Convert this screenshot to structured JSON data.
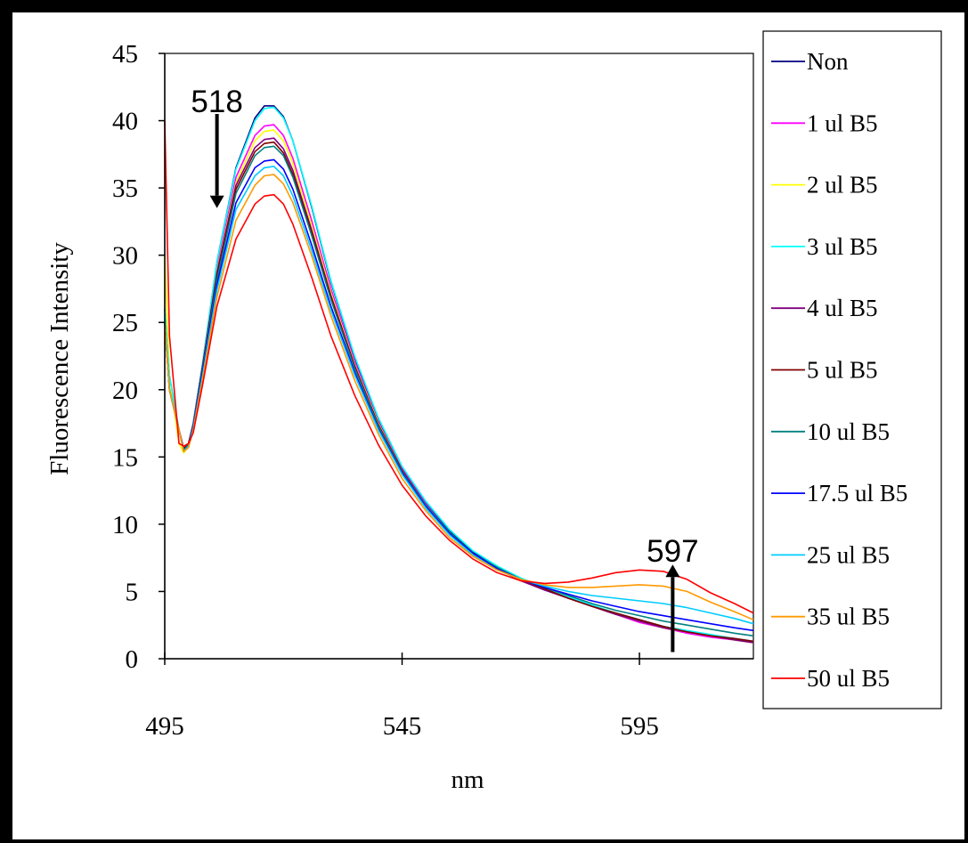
{
  "chart_data": {
    "type": "line",
    "title": "",
    "xlabel": "nm",
    "ylabel": "Fluorescence Intensity",
    "xlim": [
      495,
      619
    ],
    "ylim": [
      0,
      45
    ],
    "xticks": [
      495,
      545,
      595
    ],
    "yticks": [
      0,
      5,
      10,
      15,
      20,
      25,
      30,
      35,
      40,
      45
    ],
    "grid": false,
    "legend_position": "right",
    "annotations": [
      {
        "label": "518",
        "x": 506,
        "y_from": 40.5,
        "y_to": 33.5,
        "arrow": "down"
      },
      {
        "label": "597",
        "x": 602,
        "y_from": 0.5,
        "y_to": 7,
        "arrow": "up"
      }
    ],
    "x": [
      495,
      496,
      498,
      499,
      500,
      501,
      503,
      506,
      510,
      514,
      516,
      518,
      520,
      522,
      526,
      530,
      535,
      540,
      545,
      550,
      555,
      560,
      565,
      570,
      575,
      580,
      585,
      590,
      595,
      600,
      605,
      610,
      615,
      619
    ],
    "series": [
      {
        "name": "Non",
        "color": "#000080",
        "values": [
          26,
          21,
          17,
          15.6,
          16,
          17.5,
          22,
          29.5,
          36.5,
          40.2,
          41.1,
          41.1,
          40.3,
          38.5,
          33.5,
          28,
          22.4,
          17.8,
          14.2,
          11.6,
          9.5,
          7.9,
          6.8,
          5.9,
          5.2,
          4.5,
          3.9,
          3.3,
          2.8,
          2.4,
          2.0,
          1.7,
          1.5,
          1.3
        ]
      },
      {
        "name": "1 ul B5",
        "color": "#FF00FF",
        "values": [
          25,
          20,
          17,
          15.6,
          16,
          17.5,
          22,
          29,
          35.8,
          38.9,
          39.6,
          39.7,
          38.9,
          37.2,
          32.5,
          27.5,
          22.1,
          17.6,
          14.1,
          11.5,
          9.4,
          7.8,
          6.7,
          5.9,
          5.2,
          4.5,
          3.9,
          3.3,
          2.7,
          2.3,
          1.9,
          1.6,
          1.4,
          1.2
        ]
      },
      {
        "name": "2 ul B5",
        "color": "#FFFF00",
        "values": [
          30,
          21,
          16,
          15.3,
          15.8,
          17.3,
          22,
          28.8,
          35.4,
          38.5,
          39.2,
          39.3,
          38.5,
          36.8,
          32.1,
          27.2,
          21.9,
          17.5,
          14,
          11.4,
          9.4,
          7.8,
          6.7,
          5.9,
          5.2,
          4.5,
          3.9,
          3.3,
          2.8,
          2.3,
          2.0,
          1.7,
          1.4,
          1.2
        ]
      },
      {
        "name": "3 ul B5",
        "color": "#00FFFF",
        "values": [
          26,
          21,
          17,
          15.5,
          16,
          17.5,
          22,
          29.5,
          36.4,
          40.0,
          40.9,
          41.0,
          40.2,
          38.5,
          33.6,
          28.1,
          22.5,
          17.9,
          14.3,
          11.7,
          9.6,
          8.0,
          6.9,
          6.0,
          5.3,
          4.6,
          4.0,
          3.4,
          2.9,
          2.4,
          2.1,
          1.8,
          1.5,
          1.3
        ]
      },
      {
        "name": "4 ul B5",
        "color": "#800080",
        "values": [
          25,
          20,
          17,
          15.6,
          16,
          17.4,
          21.8,
          28.7,
          35.2,
          38.0,
          38.6,
          38.7,
          37.9,
          36.3,
          31.8,
          27.0,
          21.8,
          17.4,
          14.0,
          11.4,
          9.4,
          7.8,
          6.7,
          5.8,
          5.1,
          4.5,
          3.9,
          3.3,
          2.8,
          2.3,
          2.0,
          1.7,
          1.4,
          1.2
        ]
      },
      {
        "name": "5 ul B5",
        "color": "#800000",
        "values": [
          25,
          20,
          17,
          15.6,
          16,
          17.4,
          21.7,
          28.5,
          34.9,
          37.7,
          38.3,
          38.4,
          37.6,
          36.0,
          31.6,
          26.9,
          21.7,
          17.4,
          14.0,
          11.4,
          9.4,
          7.8,
          6.7,
          5.9,
          5.2,
          4.5,
          3.9,
          3.4,
          2.9,
          2.4,
          2.0,
          1.7,
          1.5,
          1.3
        ]
      },
      {
        "name": "10 ul B5",
        "color": "#008080",
        "values": [
          25,
          20,
          17,
          15.5,
          15.9,
          17.3,
          21.5,
          28.2,
          34.6,
          37.4,
          38.0,
          38.1,
          37.4,
          35.8,
          31.4,
          26.7,
          21.6,
          17.3,
          13.9,
          11.4,
          9.4,
          7.8,
          6.8,
          5.9,
          5.3,
          4.7,
          4.1,
          3.6,
          3.2,
          2.8,
          2.5,
          2.2,
          1.9,
          1.7
        ]
      },
      {
        "name": "17.5 ul B5",
        "color": "#0000FF",
        "values": [
          25,
          20,
          17,
          15.4,
          15.8,
          17.2,
          21.3,
          27.8,
          33.9,
          36.5,
          37.0,
          37.1,
          36.4,
          34.9,
          30.7,
          26.2,
          21.3,
          17.1,
          13.8,
          11.3,
          9.3,
          7.8,
          6.7,
          5.9,
          5.3,
          4.8,
          4.3,
          3.9,
          3.5,
          3.2,
          2.9,
          2.6,
          2.3,
          2.1
        ]
      },
      {
        "name": "25 ul B5",
        "color": "#00CCFF",
        "values": [
          25,
          20,
          17,
          15.4,
          15.8,
          17.1,
          21.1,
          27.4,
          33.4,
          35.9,
          36.5,
          36.6,
          35.9,
          34.4,
          30.3,
          25.9,
          21.1,
          17.0,
          13.7,
          11.2,
          9.2,
          7.7,
          6.6,
          5.9,
          5.4,
          5.0,
          4.7,
          4.5,
          4.3,
          4.1,
          3.8,
          3.4,
          3.0,
          2.6
        ]
      },
      {
        "name": "35 ul B5",
        "color": "#FF9900",
        "values": [
          25,
          20,
          17,
          15.4,
          15.7,
          17.0,
          20.8,
          26.9,
          32.6,
          35.2,
          35.9,
          36.0,
          35.3,
          33.9,
          29.9,
          25.5,
          20.7,
          16.7,
          13.4,
          11.0,
          9.0,
          7.6,
          6.6,
          5.9,
          5.5,
          5.3,
          5.3,
          5.4,
          5.5,
          5.4,
          5.0,
          4.2,
          3.5,
          2.9
        ]
      },
      {
        "name": "50 ul B5",
        "color": "#FF0000",
        "values": [
          40,
          24,
          16,
          15.8,
          16.0,
          16.8,
          20.4,
          26.2,
          31.2,
          33.8,
          34.4,
          34.5,
          33.8,
          32.3,
          28.3,
          24.0,
          19.6,
          15.9,
          12.9,
          10.6,
          8.8,
          7.4,
          6.4,
          5.8,
          5.6,
          5.7,
          6.0,
          6.4,
          6.6,
          6.5,
          5.9,
          4.9,
          4.1,
          3.4
        ]
      }
    ]
  }
}
